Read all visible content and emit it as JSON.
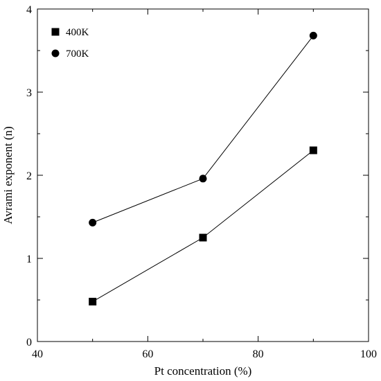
{
  "chart_data": {
    "type": "line",
    "title": "",
    "xlabel": "Pt concentration (%)",
    "ylabel": "Avrami exponent (n)",
    "xlim": [
      40,
      100
    ],
    "ylim": [
      0,
      4
    ],
    "xticks": [
      40,
      60,
      80,
      100
    ],
    "yticks": [
      0,
      1,
      2,
      3,
      4
    ],
    "grid": false,
    "legend": {
      "placement": "top-left"
    },
    "x": [
      50,
      70,
      90
    ],
    "series": [
      {
        "name": "400K",
        "marker": "square",
        "color": "#000000",
        "values": [
          0.48,
          1.25,
          2.3
        ]
      },
      {
        "name": "700K",
        "marker": "circle",
        "color": "#000000",
        "values": [
          1.43,
          1.96,
          3.68
        ]
      }
    ]
  }
}
